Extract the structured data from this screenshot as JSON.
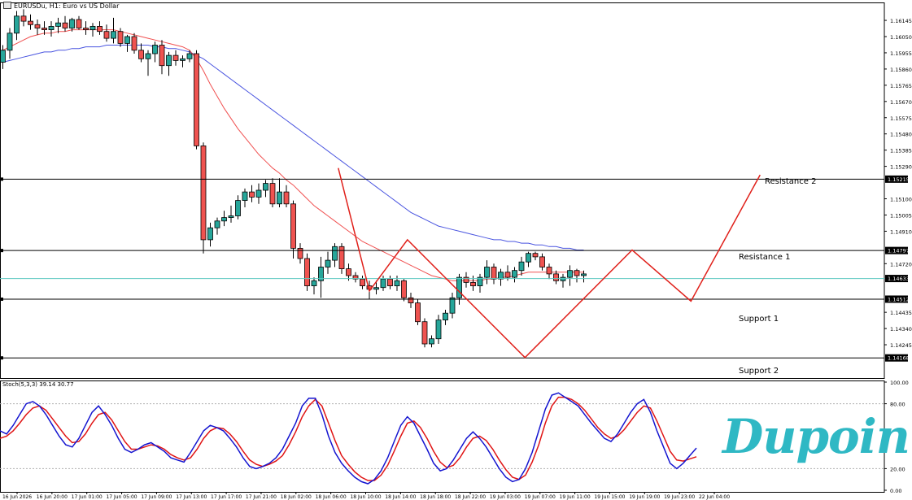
{
  "header": {
    "symbol_text": "EURUSDu, H1:  Euro vs US Dollar",
    "stoch_text": "Stoch(5,3,3) 39.14 30.77"
  },
  "labels": {
    "resistance2": "Resistance 2",
    "resistance1": "Resistance 1",
    "support1": "Support 1",
    "support2": "Support 2"
  },
  "logo": {
    "text": "Dupoin",
    "color": "#2fb8c4"
  },
  "colors": {
    "bull": "#26a69a",
    "bear": "#ef5350",
    "ma_fast": "#f05050",
    "ma_slow": "#4a55e0",
    "projection": "#e0201a",
    "current_price_line": "#5bc8c0",
    "stoch_k": "#1515d0",
    "stoch_d": "#e01515"
  },
  "chart_data": {
    "type": "candlestick",
    "symbol": "EURUSDu",
    "timeframe": "H1",
    "title": "Euro vs US Dollar",
    "ylim": [
      1.1405,
      1.1625
    ],
    "price_ticks": [
      "1.16145",
      "1.16050",
      "1.15955",
      "1.15860",
      "1.15765",
      "1.15670",
      "1.15575",
      "1.15480",
      "1.15385",
      "1.15290",
      "1.15100",
      "1.15005",
      "1.14910",
      "1.14720",
      "1.14435",
      "1.14340",
      "1.14245"
    ],
    "x_labels": [
      "16 Jun 2026",
      "16 Jun 20:00",
      "17 Jun 01:00",
      "17 Jun 05:00",
      "17 Jun 09:00",
      "17 Jun 13:00",
      "17 Jun 17:00",
      "17 Jun 21:00",
      "18 Jun 02:00",
      "18 Jun 06:00",
      "18 Jun 10:00",
      "18 Jun 14:00",
      "18 Jun 18:00",
      "18 Jun 22:00",
      "19 Jun 03:00",
      "19 Jun 07:00",
      "19 Jun 11:00",
      "19 Jun 15:00",
      "19 Jun 19:00",
      "19 Jun 23:00",
      "22 Jun 04:00"
    ],
    "levels": [
      {
        "name": "Resistance 2",
        "price": 1.15215,
        "price_label": "1.15215"
      },
      {
        "name": "Resistance 1",
        "price": 1.14797,
        "price_label": "1.14797"
      },
      {
        "name": "Current price",
        "price": 1.14633,
        "price_label": "1.14633"
      },
      {
        "name": "Support 1",
        "price": 1.14512,
        "price_label": "1.14512"
      },
      {
        "name": "Support 2",
        "price": 1.14168,
        "price_label": "1.14168"
      }
    ],
    "candles": [
      {
        "o": 1.159,
        "h": 1.16,
        "l": 1.1586,
        "c": 1.1597
      },
      {
        "o": 1.1597,
        "h": 1.161,
        "l": 1.1592,
        "c": 1.1607
      },
      {
        "o": 1.1607,
        "h": 1.162,
        "l": 1.1603,
        "c": 1.1617
      },
      {
        "o": 1.1617,
        "h": 1.1621,
        "l": 1.1611,
        "c": 1.1614
      },
      {
        "o": 1.1614,
        "h": 1.1618,
        "l": 1.1609,
        "c": 1.1612
      },
      {
        "o": 1.1612,
        "h": 1.1615,
        "l": 1.1606,
        "c": 1.161
      },
      {
        "o": 1.161,
        "h": 1.1614,
        "l": 1.1606,
        "c": 1.1609
      },
      {
        "o": 1.1609,
        "h": 1.1614,
        "l": 1.1605,
        "c": 1.1611
      },
      {
        "o": 1.1611,
        "h": 1.1616,
        "l": 1.1607,
        "c": 1.1613
      },
      {
        "o": 1.1613,
        "h": 1.1617,
        "l": 1.1608,
        "c": 1.161
      },
      {
        "o": 1.161,
        "h": 1.1616,
        "l": 1.1608,
        "c": 1.1615
      },
      {
        "o": 1.1615,
        "h": 1.1617,
        "l": 1.1609,
        "c": 1.161
      },
      {
        "o": 1.161,
        "h": 1.1614,
        "l": 1.1606,
        "c": 1.1609
      },
      {
        "o": 1.1609,
        "h": 1.1613,
        "l": 1.1605,
        "c": 1.1611
      },
      {
        "o": 1.1611,
        "h": 1.1614,
        "l": 1.1606,
        "c": 1.1608
      },
      {
        "o": 1.1608,
        "h": 1.1612,
        "l": 1.1602,
        "c": 1.1604
      },
      {
        "o": 1.1604,
        "h": 1.1616,
        "l": 1.1601,
        "c": 1.1608
      },
      {
        "o": 1.1608,
        "h": 1.161,
        "l": 1.1599,
        "c": 1.1601
      },
      {
        "o": 1.1601,
        "h": 1.1606,
        "l": 1.1596,
        "c": 1.1605
      },
      {
        "o": 1.1605,
        "h": 1.1607,
        "l": 1.1595,
        "c": 1.1597
      },
      {
        "o": 1.1597,
        "h": 1.1601,
        "l": 1.159,
        "c": 1.1592
      },
      {
        "o": 1.1592,
        "h": 1.1597,
        "l": 1.1582,
        "c": 1.1595
      },
      {
        "o": 1.1595,
        "h": 1.1602,
        "l": 1.159,
        "c": 1.16
      },
      {
        "o": 1.16,
        "h": 1.1603,
        "l": 1.1583,
        "c": 1.1588
      },
      {
        "o": 1.1588,
        "h": 1.1596,
        "l": 1.1582,
        "c": 1.1594
      },
      {
        "o": 1.1594,
        "h": 1.1597,
        "l": 1.1588,
        "c": 1.1591
      },
      {
        "o": 1.1591,
        "h": 1.1594,
        "l": 1.1587,
        "c": 1.1592
      },
      {
        "o": 1.1592,
        "h": 1.1597,
        "l": 1.159,
        "c": 1.1595
      },
      {
        "o": 1.1595,
        "h": 1.1597,
        "l": 1.1539,
        "c": 1.1541
      },
      {
        "o": 1.1541,
        "h": 1.1543,
        "l": 1.1478,
        "c": 1.1486
      },
      {
        "o": 1.1486,
        "h": 1.1496,
        "l": 1.1482,
        "c": 1.1493
      },
      {
        "o": 1.1493,
        "h": 1.1499,
        "l": 1.1489,
        "c": 1.1497
      },
      {
        "o": 1.1497,
        "h": 1.1503,
        "l": 1.1494,
        "c": 1.1499
      },
      {
        "o": 1.1499,
        "h": 1.1506,
        "l": 1.1496,
        "c": 1.15
      },
      {
        "o": 1.15,
        "h": 1.1512,
        "l": 1.1498,
        "c": 1.1509
      },
      {
        "o": 1.1509,
        "h": 1.1516,
        "l": 1.1505,
        "c": 1.1514
      },
      {
        "o": 1.1514,
        "h": 1.1518,
        "l": 1.1508,
        "c": 1.1511
      },
      {
        "o": 1.1511,
        "h": 1.1519,
        "l": 1.1507,
        "c": 1.1515
      },
      {
        "o": 1.1515,
        "h": 1.1521,
        "l": 1.1511,
        "c": 1.1519
      },
      {
        "o": 1.1519,
        "h": 1.1522,
        "l": 1.1505,
        "c": 1.1507
      },
      {
        "o": 1.1507,
        "h": 1.1522,
        "l": 1.1505,
        "c": 1.1514
      },
      {
        "o": 1.1514,
        "h": 1.1518,
        "l": 1.1505,
        "c": 1.1507
      },
      {
        "o": 1.1507,
        "h": 1.1509,
        "l": 1.1475,
        "c": 1.1481
      },
      {
        "o": 1.1481,
        "h": 1.1484,
        "l": 1.1472,
        "c": 1.1475
      },
      {
        "o": 1.1475,
        "h": 1.1478,
        "l": 1.1456,
        "c": 1.1459
      },
      {
        "o": 1.1459,
        "h": 1.1464,
        "l": 1.1454,
        "c": 1.1462
      },
      {
        "o": 1.1462,
        "h": 1.1476,
        "l": 1.1452,
        "c": 1.147
      },
      {
        "o": 1.147,
        "h": 1.1479,
        "l": 1.1466,
        "c": 1.1474
      },
      {
        "o": 1.1474,
        "h": 1.1484,
        "l": 1.147,
        "c": 1.1482
      },
      {
        "o": 1.1482,
        "h": 1.1484,
        "l": 1.1466,
        "c": 1.1469
      },
      {
        "o": 1.1469,
        "h": 1.1472,
        "l": 1.1462,
        "c": 1.1465
      },
      {
        "o": 1.1465,
        "h": 1.1467,
        "l": 1.1461,
        "c": 1.1463
      },
      {
        "o": 1.1463,
        "h": 1.1465,
        "l": 1.1457,
        "c": 1.1459
      },
      {
        "o": 1.1459,
        "h": 1.1462,
        "l": 1.1451,
        "c": 1.1457
      },
      {
        "o": 1.1457,
        "h": 1.1462,
        "l": 1.1454,
        "c": 1.1458
      },
      {
        "o": 1.1458,
        "h": 1.1465,
        "l": 1.1456,
        "c": 1.1463
      },
      {
        "o": 1.1463,
        "h": 1.1465,
        "l": 1.1457,
        "c": 1.1459
      },
      {
        "o": 1.1459,
        "h": 1.1465,
        "l": 1.1456,
        "c": 1.1462
      },
      {
        "o": 1.1462,
        "h": 1.1463,
        "l": 1.145,
        "c": 1.1452
      },
      {
        "o": 1.1452,
        "h": 1.1455,
        "l": 1.1446,
        "c": 1.1449
      },
      {
        "o": 1.1449,
        "h": 1.1451,
        "l": 1.1436,
        "c": 1.1438
      },
      {
        "o": 1.1438,
        "h": 1.144,
        "l": 1.1423,
        "c": 1.1425
      },
      {
        "o": 1.1425,
        "h": 1.143,
        "l": 1.1423,
        "c": 1.1428
      },
      {
        "o": 1.1428,
        "h": 1.1442,
        "l": 1.1425,
        "c": 1.1439
      },
      {
        "o": 1.1439,
        "h": 1.1445,
        "l": 1.1436,
        "c": 1.1443
      },
      {
        "o": 1.1443,
        "h": 1.1455,
        "l": 1.144,
        "c": 1.1452
      },
      {
        "o": 1.1452,
        "h": 1.1466,
        "l": 1.1448,
        "c": 1.1464
      },
      {
        "o": 1.1464,
        "h": 1.1467,
        "l": 1.1458,
        "c": 1.1461
      },
      {
        "o": 1.1461,
        "h": 1.1465,
        "l": 1.1456,
        "c": 1.1459
      },
      {
        "o": 1.1459,
        "h": 1.1466,
        "l": 1.1455,
        "c": 1.1464
      },
      {
        "o": 1.1464,
        "h": 1.1474,
        "l": 1.146,
        "c": 1.147
      },
      {
        "o": 1.147,
        "h": 1.1472,
        "l": 1.146,
        "c": 1.1463
      },
      {
        "o": 1.1463,
        "h": 1.1469,
        "l": 1.1459,
        "c": 1.1467
      },
      {
        "o": 1.1467,
        "h": 1.1471,
        "l": 1.1462,
        "c": 1.1464
      },
      {
        "o": 1.1464,
        "h": 1.147,
        "l": 1.1461,
        "c": 1.1468
      },
      {
        "o": 1.1468,
        "h": 1.1476,
        "l": 1.1465,
        "c": 1.1473
      },
      {
        "o": 1.1473,
        "h": 1.1479,
        "l": 1.147,
        "c": 1.1478
      },
      {
        "o": 1.1478,
        "h": 1.1479,
        "l": 1.1474,
        "c": 1.1476
      },
      {
        "o": 1.1476,
        "h": 1.1478,
        "l": 1.1468,
        "c": 1.147
      },
      {
        "o": 1.147,
        "h": 1.1472,
        "l": 1.1463,
        "c": 1.1466
      },
      {
        "o": 1.1466,
        "h": 1.1468,
        "l": 1.146,
        "c": 1.1462
      },
      {
        "o": 1.1462,
        "h": 1.1466,
        "l": 1.1458,
        "c": 1.1464
      },
      {
        "o": 1.1464,
        "h": 1.1471,
        "l": 1.1459,
        "c": 1.1468
      },
      {
        "o": 1.1468,
        "h": 1.1469,
        "l": 1.1461,
        "c": 1.1465
      },
      {
        "o": 1.1465,
        "h": 1.1468,
        "l": 1.1461,
        "c": 1.1466
      }
    ],
    "ma_fast": [
      1.1597,
      1.1599,
      1.1601,
      1.1603,
      1.1605,
      1.1606,
      1.1607,
      1.1607,
      1.1608,
      1.1608,
      1.1609,
      1.1609,
      1.1609,
      1.1609,
      1.1609,
      1.1609,
      1.1609,
      1.1608,
      1.1607,
      1.1606,
      1.1605,
      1.1604,
      1.1603,
      1.1602,
      1.1601,
      1.16,
      1.1599,
      1.1597,
      1.1592,
      1.1585,
      1.1577,
      1.157,
      1.1563,
      1.1557,
      1.1551,
      1.1546,
      1.1541,
      1.1536,
      1.1532,
      1.1528,
      1.1525,
      1.1521,
      1.1518,
      1.1514,
      1.151,
      1.1506,
      1.1503,
      1.15,
      1.1497,
      1.1494,
      1.1491,
      1.1488,
      1.1485,
      1.1483,
      1.1481,
      1.1479,
      1.1477,
      1.1475,
      1.1473,
      1.1471,
      1.1469,
      1.1467,
      1.1465,
      1.1464,
      1.1463,
      1.1462,
      1.1462,
      1.1462,
      1.1462,
      1.1462,
      1.1463,
      1.1463,
      1.1464,
      1.1464,
      1.1465,
      1.1466,
      1.1467,
      1.1467,
      1.1467,
      1.1467,
      1.1467,
      1.1467,
      1.1467,
      1.1467,
      1.1467
    ],
    "ma_slow": [
      1.159,
      1.1591,
      1.1592,
      1.1593,
      1.1594,
      1.1595,
      1.1596,
      1.1596,
      1.1597,
      1.1597,
      1.1598,
      1.1598,
      1.1599,
      1.1599,
      1.1599,
      1.16,
      1.16,
      1.16,
      1.16,
      1.16,
      1.16,
      1.16,
      1.1599,
      1.1599,
      1.1598,
      1.1598,
      1.1597,
      1.1596,
      1.1594,
      1.1592,
      1.1589,
      1.1586,
      1.1583,
      1.158,
      1.1577,
      1.1574,
      1.1571,
      1.1568,
      1.1565,
      1.1562,
      1.1559,
      1.1556,
      1.1553,
      1.155,
      1.1547,
      1.1544,
      1.1541,
      1.1538,
      1.1535,
      1.1532,
      1.1529,
      1.1526,
      1.1523,
      1.152,
      1.1517,
      1.1514,
      1.1511,
      1.1508,
      1.1505,
      1.1502,
      1.15,
      1.1498,
      1.1496,
      1.1494,
      1.1493,
      1.1492,
      1.1491,
      1.149,
      1.1489,
      1.1488,
      1.1487,
      1.1486,
      1.1486,
      1.1485,
      1.1485,
      1.1484,
      1.1484,
      1.1483,
      1.1483,
      1.1482,
      1.1482,
      1.1481,
      1.1481,
      1.148,
      1.148
    ],
    "projection_path": [
      {
        "bar": 48.5,
        "price": 1.1528
      },
      {
        "bar": 53.0,
        "price": 1.1456
      },
      {
        "bar": 58.5,
        "price": 1.1486
      },
      {
        "bar": 75.5,
        "price": 1.1417
      },
      {
        "bar": 91.0,
        "price": 1.148
      },
      {
        "bar": 99.5,
        "price": 1.145
      },
      {
        "bar": 109.5,
        "price": 1.1524
      }
    ],
    "stochastic": {
      "k_period": 5,
      "d_period": 3,
      "slowing": 3,
      "k_last": 39.14,
      "d_last": 30.77,
      "ylim": [
        0,
        100
      ],
      "levels": [
        20,
        80
      ],
      "ticks": [
        "100.00",
        "80.00",
        "20.00",
        "0.00"
      ],
      "k": [
        55,
        52,
        60,
        70,
        80,
        82,
        78,
        70,
        60,
        50,
        42,
        40,
        48,
        60,
        72,
        78,
        70,
        60,
        48,
        38,
        35,
        38,
        42,
        44,
        40,
        36,
        30,
        28,
        26,
        35,
        45,
        55,
        60,
        58,
        55,
        48,
        40,
        30,
        22,
        20,
        22,
        25,
        30,
        38,
        50,
        62,
        78,
        85,
        85,
        70,
        50,
        35,
        25,
        18,
        12,
        8,
        6,
        10,
        18,
        30,
        45,
        60,
        68,
        62,
        50,
        38,
        25,
        18,
        20,
        28,
        38,
        48,
        54,
        48,
        40,
        30,
        20,
        12,
        8,
        10,
        20,
        35,
        55,
        75,
        88,
        90,
        86,
        82,
        78,
        70,
        62,
        55,
        48,
        45,
        52,
        62,
        72,
        80,
        84,
        72,
        55,
        40,
        25,
        20,
        25,
        32,
        39
      ],
      "d": [
        48,
        50,
        55,
        62,
        70,
        76,
        78,
        74,
        66,
        58,
        50,
        44,
        45,
        52,
        62,
        70,
        72,
        65,
        55,
        45,
        38,
        38,
        40,
        42,
        41,
        38,
        33,
        30,
        28,
        30,
        38,
        48,
        55,
        58,
        57,
        52,
        45,
        36,
        28,
        24,
        22,
        24,
        27,
        32,
        42,
        54,
        68,
        78,
        84,
        78,
        62,
        46,
        32,
        24,
        17,
        12,
        9,
        9,
        14,
        23,
        36,
        50,
        62,
        64,
        58,
        48,
        36,
        26,
        21,
        23,
        30,
        40,
        48,
        50,
        46,
        38,
        28,
        19,
        12,
        10,
        14,
        26,
        42,
        62,
        78,
        86,
        86,
        84,
        80,
        74,
        66,
        58,
        52,
        48,
        50,
        56,
        64,
        72,
        78,
        76,
        64,
        50,
        36,
        28,
        27,
        29,
        31
      ]
    }
  }
}
